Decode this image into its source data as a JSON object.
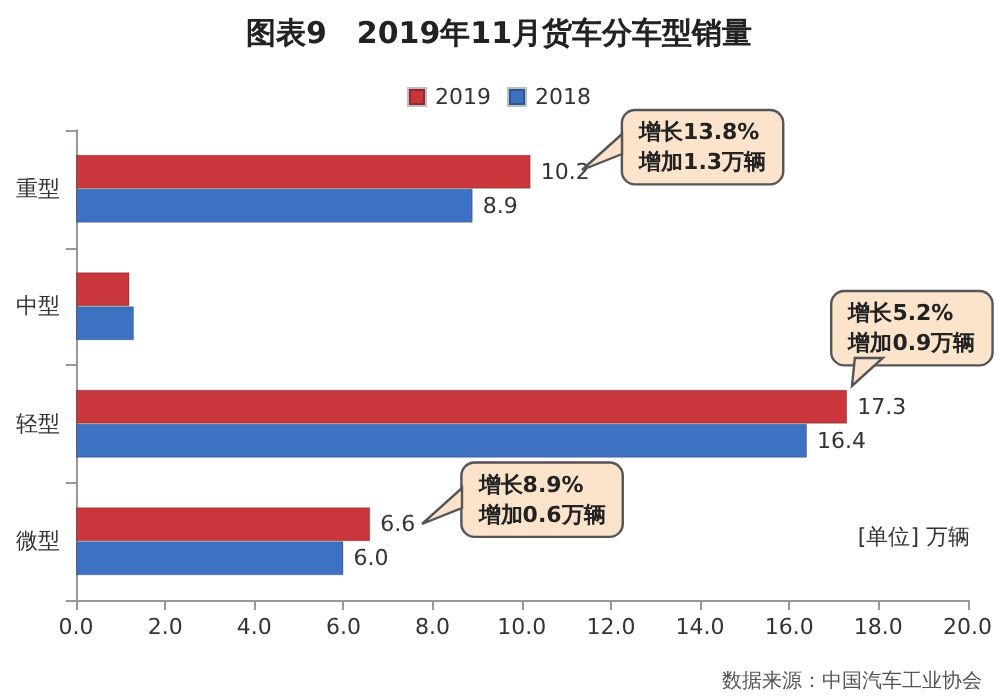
{
  "chart_data": {
    "type": "bar",
    "orientation": "horizontal",
    "title": "图表9　2019年11月货车分车型销量",
    "xlabel": "[单位] 万辆",
    "categories": [
      "重型",
      "中型",
      "轻型",
      "微型"
    ],
    "series": [
      {
        "name": "2019",
        "color": "#c9363b",
        "values": [
          10.2,
          1.2,
          17.3,
          6.6
        ],
        "value_labels": [
          "10.2",
          null,
          "17.3",
          "6.6"
        ]
      },
      {
        "name": "2018",
        "color": "#3d72c2",
        "values": [
          8.9,
          1.3,
          16.4,
          6.0
        ],
        "value_labels": [
          "8.9",
          null,
          "16.4",
          "6.0"
        ]
      }
    ],
    "xlim": [
      0,
      20
    ],
    "xticks": [
      {
        "value": 0,
        "label": "0.0"
      },
      {
        "value": 2,
        "label": "2.0"
      },
      {
        "value": 4,
        "label": "4.0"
      },
      {
        "value": 6,
        "label": "6.0"
      },
      {
        "value": 8,
        "label": "8.0"
      },
      {
        "value": 10,
        "label": "10.0"
      },
      {
        "value": 12,
        "label": "12.0"
      },
      {
        "value": 14,
        "label": "14.0"
      },
      {
        "value": 16,
        "label": "16.0"
      },
      {
        "value": 18,
        "label": "18.0"
      },
      {
        "value": 20,
        "label": "20.0"
      }
    ],
    "annotations": [
      "增长13.8%\n增加1.3万辆",
      "增长5.2%\n增加0.9万辆",
      "增长8.9%\n增加0.6万辆",
      "数据来源：中国汽车工业协会"
    ],
    "grid": false,
    "legend": "top"
  }
}
